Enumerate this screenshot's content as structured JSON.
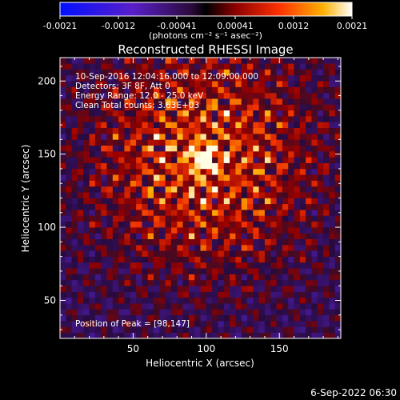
{
  "colorbar": {
    "ticks": [
      "-0.0021",
      "-0.0012",
      "-0.00041",
      "0.00041",
      "0.0012",
      "0.0021"
    ],
    "unit_label": "(photons cm⁻² s⁻¹ asec⁻²)",
    "range": [
      -0.0021,
      0.0021
    ]
  },
  "chart_data": {
    "type": "heatmap",
    "title": "Reconstructed RHESSI Image",
    "xlabel": "Heliocentric X (arcsec)",
    "ylabel": "Heliocentric Y (arcsec)",
    "xlim": [
      0,
      192
    ],
    "ylim": [
      24,
      216
    ],
    "xticks": [
      50,
      100,
      150
    ],
    "yticks": [
      50,
      100,
      150,
      200
    ],
    "xtick_labels": [
      "50",
      "100",
      "150"
    ],
    "ytick_labels": [
      "50",
      "100",
      "150",
      "200"
    ],
    "peak": [
      98,
      147
    ],
    "annotations": [
      "10-Sep-2016 12:04:16.000 to 12:09:00.000",
      "Detectors: 3F 8F, Att 0",
      "Energy Range: 12.0 - 25.0 keV",
      "Clean      Total counts: 3.63E+03",
      "Position of Peak = [98,147]"
    ]
  },
  "footer": {
    "timestamp": "6-Sep-2022 06:30"
  }
}
